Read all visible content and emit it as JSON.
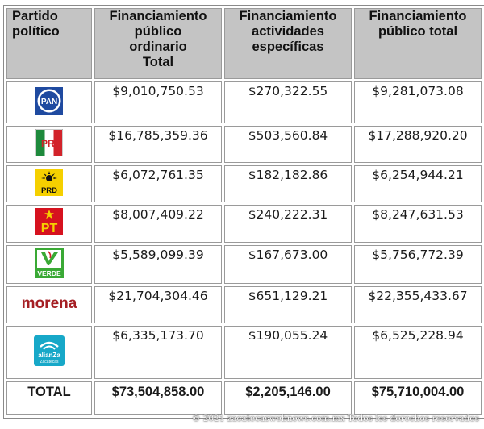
{
  "headers": [
    [
      "Partido",
      "político"
    ],
    [
      "Financiamiento",
      "público",
      "ordinario",
      "Total"
    ],
    [
      "Financiamiento",
      "actividades",
      "específicas"
    ],
    [
      "Financiamiento",
      "público total"
    ]
  ],
  "rows": [
    {
      "party": "PAN",
      "logo_text": "PAN",
      "logo_icon": "pan-logo-icon",
      "ordinario": "$9,010,750.53",
      "especificas": "$270,322.55",
      "total": "$9,281,073.08"
    },
    {
      "party": "PRI",
      "logo_text": "PRI",
      "logo_icon": "pri-logo-icon",
      "ordinario": "$16,785,359.36",
      "especificas": "$503,560.84",
      "total": "$17,288,920.20"
    },
    {
      "party": "PRD",
      "logo_text": "PRD",
      "logo_icon": "prd-logo-icon",
      "ordinario": "$6,072,761.35",
      "especificas": "$182,182.86",
      "total": "$6,254,944.21"
    },
    {
      "party": "PT",
      "logo_text": "PT",
      "logo_icon": "pt-logo-icon",
      "ordinario": "$8,007,409.22",
      "especificas": "$240,222.31",
      "total": "$8,247,631.53"
    },
    {
      "party": "VERDE",
      "logo_text": "VERDE",
      "logo_icon": "verde-logo-icon",
      "ordinario": "$5,589,099.39",
      "especificas": "$167,673.00",
      "total": "$5,756,772.39"
    },
    {
      "party": "morena",
      "logo_text": "morena",
      "logo_icon": "morena-logo-icon",
      "ordinario": "$21,704,304.46",
      "especificas": "$651,129.21",
      "total": "$22,355,433.67"
    },
    {
      "party": "alianza Zacatecas",
      "logo_text": "alianZa",
      "logo_subtext": "Zacatecas",
      "logo_icon": "alianza-zacatecas-logo-icon",
      "ordinario": "$6,335,173.70",
      "especificas": "$190,055.24",
      "total": "$6,525,228.94"
    }
  ],
  "total_row": {
    "label": "TOTAL",
    "ordinario": "$73,504,858.00",
    "especificas": "$2,205,146.00",
    "total": "$75,710,004.00"
  },
  "footer": "© 2021 zacatecaswebnews.com.mx Todos los derechos reservados",
  "colors": {
    "header_bg": "#c4c4c4",
    "pan_blue": "#1f4aa0",
    "pri_green": "#1e8a3c",
    "pri_red": "#d2232a",
    "prd_yellow": "#f5d000",
    "pt_red": "#d6121f",
    "verde_green": "#3aa935",
    "morena_red": "#a51f24",
    "alianza_teal": "#17a8c8"
  }
}
